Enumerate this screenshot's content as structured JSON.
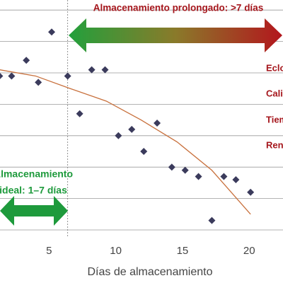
{
  "chart_data": {
    "type": "scatter",
    "x_label": "Días de almacenamiento",
    "xlim": [
      1.33,
      22.53
    ],
    "xticks": [
      5,
      10,
      15,
      20
    ],
    "ylim": [
      0,
      7.32
    ],
    "yticks": [
      0,
      1,
      2,
      3,
      4,
      5,
      6,
      7
    ],
    "grid": true,
    "color": "#3b3b5c",
    "x": [
      1.3,
      2.2,
      3.3,
      4.2,
      5.2,
      6.4,
      7.3,
      8.2,
      9.2,
      10.2,
      11.2,
      12.1,
      13.1,
      14.2,
      15.2,
      16.2,
      17.2,
      18.1,
      19.0,
      20.1
    ],
    "values": [
      4.9,
      4.9,
      5.4,
      4.7,
      6.3,
      4.9,
      3.7,
      5.1,
      5.1,
      3.0,
      3.2,
      2.5,
      3.4,
      2.0,
      1.9,
      1.7,
      0.3,
      1.7,
      1.6,
      1.2
    ],
    "trend": {
      "color": "#c8703c",
      "x": [
        1.3,
        4.0,
        6.6,
        9.3,
        11.9,
        14.6,
        17.2,
        20.1
      ],
      "values": [
        5.1,
        4.9,
        4.5,
        4.1,
        3.5,
        2.8,
        1.9,
        0.5
      ]
    },
    "divider_x": 6.4,
    "annotations": {
      "long_storage": "Almacenamiento prolongado: >7 días",
      "ideal_storage": [
        "Almacenamiento",
        "ideal: 1–7 días"
      ],
      "side_labels": [
        "Eclos",
        "Calid",
        "Tiem",
        "Reno"
      ]
    }
  }
}
